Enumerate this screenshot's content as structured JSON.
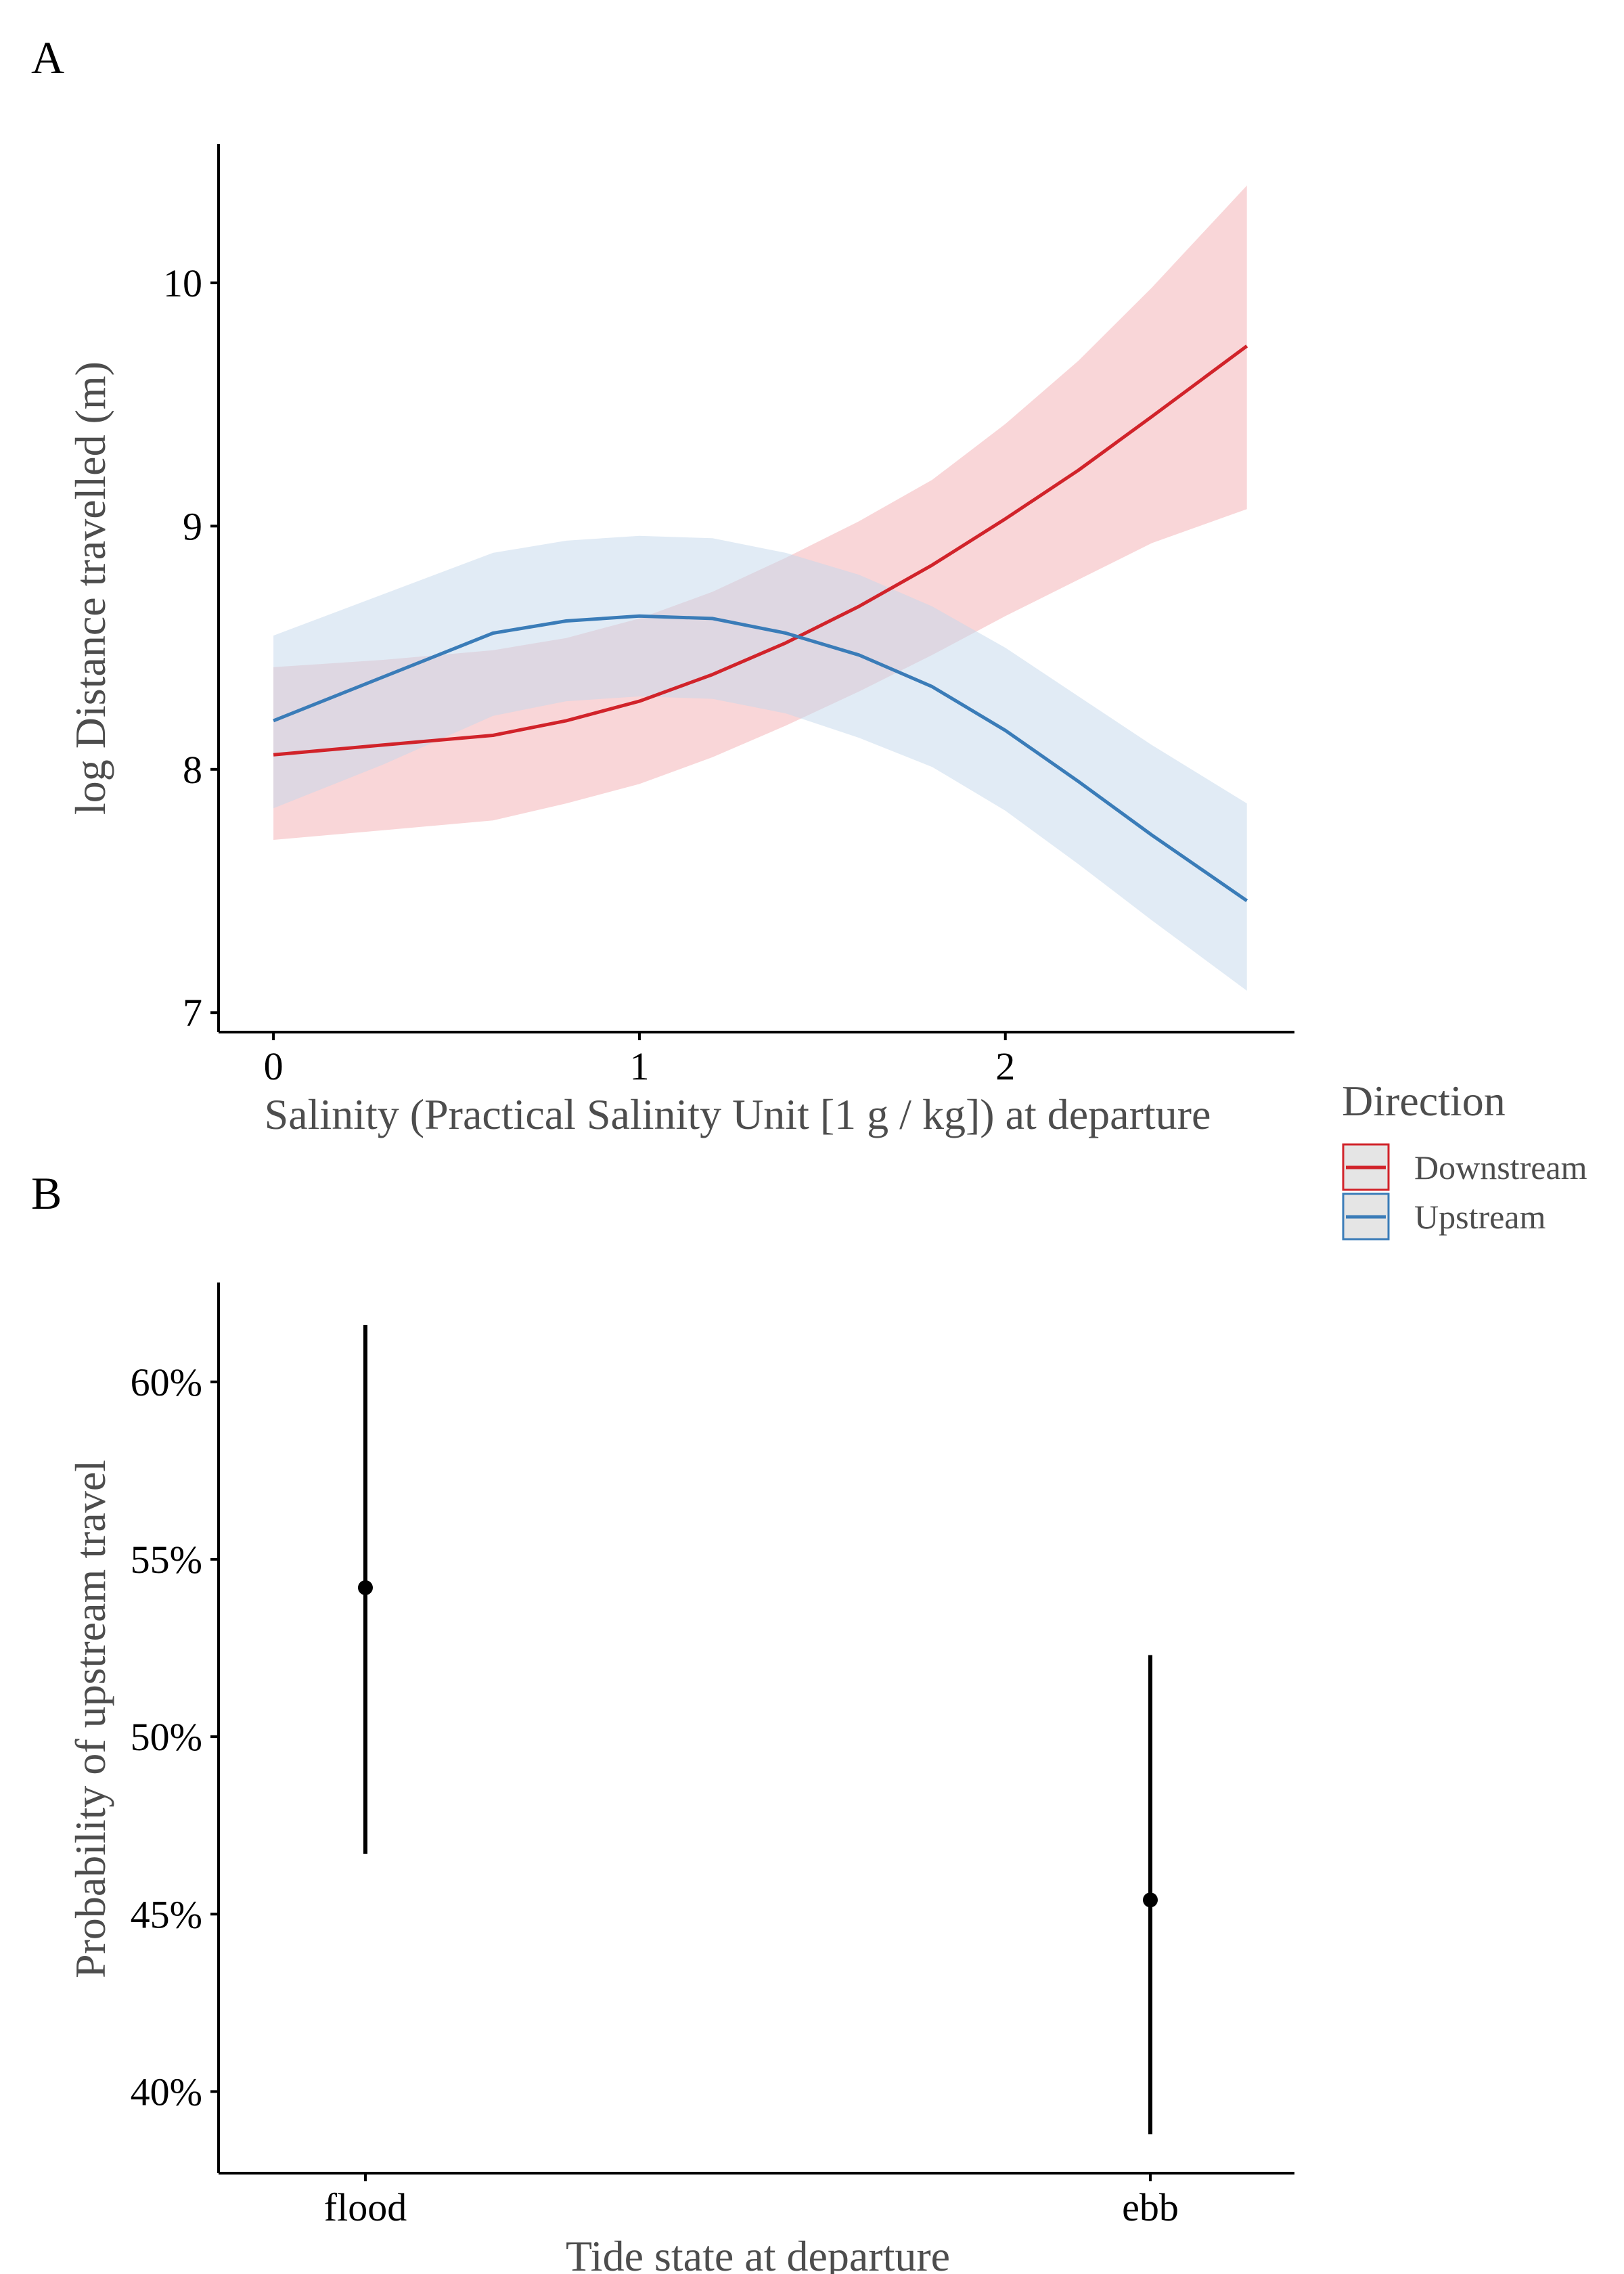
{
  "chart_data": [
    {
      "panel": "A",
      "type": "line",
      "xlabel": "Salinity (Practical Salinity Unit [1 g / kg]) at departure",
      "ylabel": "log Distance travelled (m)",
      "xlim": [
        -0.15,
        2.79
      ],
      "ylim": [
        6.92,
        10.57
      ],
      "xticks": [
        0,
        1,
        2
      ],
      "yticks": [
        7,
        8,
        9,
        10
      ],
      "legend": {
        "title": "Direction",
        "position": "right",
        "entries": [
          "Downstream",
          "Upstream"
        ]
      },
      "series": [
        {
          "name": "Downstream",
          "color": "#d1232a",
          "band_color": "#f4aeb1",
          "x": [
            0,
            0.3,
            0.6,
            0.8,
            1.0,
            1.2,
            1.4,
            1.6,
            1.8,
            2.0,
            2.2,
            2.4,
            2.66
          ],
          "y": [
            8.06,
            8.1,
            8.14,
            8.2,
            8.28,
            8.39,
            8.52,
            8.67,
            8.84,
            9.03,
            9.23,
            9.45,
            9.74
          ],
          "lower": [
            7.71,
            7.75,
            7.79,
            7.86,
            7.94,
            8.05,
            8.18,
            8.32,
            8.47,
            8.63,
            8.78,
            8.93,
            9.07
          ],
          "upper": [
            8.42,
            8.45,
            8.49,
            8.54,
            8.62,
            8.73,
            8.87,
            9.02,
            9.19,
            9.42,
            9.68,
            9.98,
            10.4
          ]
        },
        {
          "name": "Upstream",
          "color": "#3a7cb8",
          "band_color": "#c4d8eb",
          "x": [
            0,
            0.3,
            0.6,
            0.8,
            1.0,
            1.2,
            1.4,
            1.6,
            1.8,
            2.0,
            2.2,
            2.4,
            2.66
          ],
          "y": [
            8.2,
            8.38,
            8.56,
            8.61,
            8.63,
            8.62,
            8.56,
            8.47,
            8.34,
            8.16,
            7.95,
            7.73,
            7.46
          ],
          "lower": [
            7.84,
            8.02,
            8.22,
            8.28,
            8.3,
            8.29,
            8.23,
            8.13,
            8.01,
            7.83,
            7.61,
            7.38,
            7.09
          ],
          "upper": [
            8.55,
            8.72,
            8.89,
            8.94,
            8.96,
            8.95,
            8.89,
            8.8,
            8.67,
            8.5,
            8.3,
            8.1,
            7.86
          ]
        }
      ]
    },
    {
      "panel": "B",
      "type": "pointrange",
      "xlabel": "Tide state at departure",
      "ylabel": "Probability of upstream travel",
      "categories": [
        "flood",
        "ebb"
      ],
      "values": [
        54.2,
        45.4
      ],
      "lower": [
        46.7,
        38.8
      ],
      "upper": [
        61.6,
        52.3
      ],
      "ylim": [
        37.7,
        62.8
      ],
      "yticks": [
        40,
        45,
        50,
        55,
        60
      ],
      "ytick_labels": [
        "40%",
        "45%",
        "50%",
        "55%",
        "60%"
      ],
      "color": "#000000"
    }
  ]
}
